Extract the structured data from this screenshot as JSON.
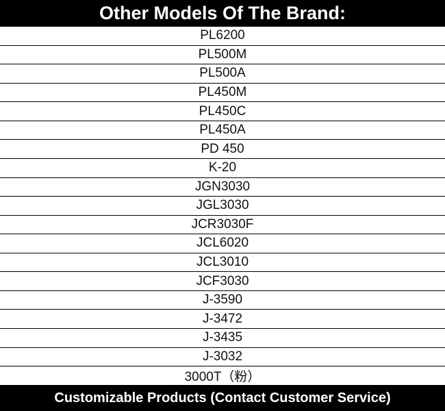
{
  "header": {
    "title": "Other Models Of The Brand:"
  },
  "table": {
    "rows": [
      "PL6200",
      "PL500M",
      "PL500A",
      "PL450M",
      "PL450C",
      "PL450A",
      "PD 450",
      "K-20",
      "JGN3030",
      "JGL3030",
      "JCR3030F",
      "JCL6020",
      "JCL3010",
      "JCF3030",
      "J-3590",
      "J-3472",
      "J-3435",
      "J-3032",
      "3000T（粉）"
    ]
  },
  "footer": {
    "text": "Customizable Products (Contact Customer Service)"
  }
}
